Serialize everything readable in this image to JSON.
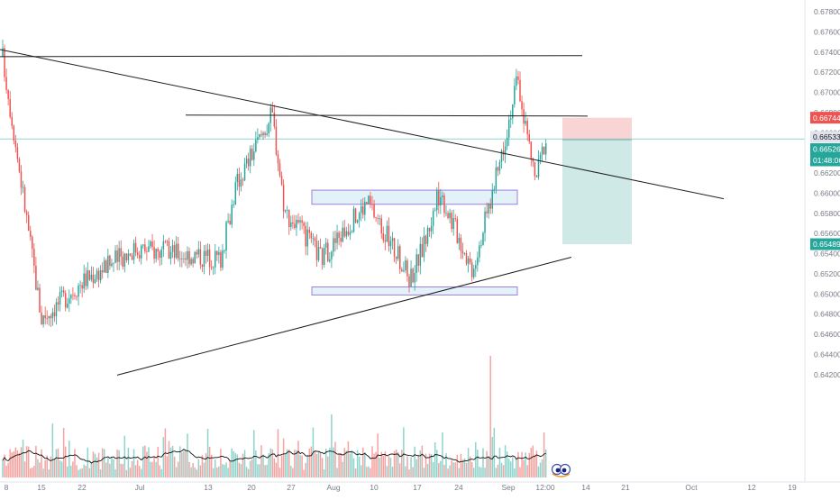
{
  "chart_data": {
    "type": "candlestick",
    "interval": "4H",
    "x_ticks": [
      "8",
      "15",
      "22",
      "Jul",
      "13",
      "20",
      "27",
      "Aug",
      "10",
      "17",
      "24",
      "Sep",
      "12:00",
      "14",
      "21",
      "Oct",
      "12",
      "19"
    ],
    "y_ticks": [
      "0.67800",
      "0.67600",
      "0.67400",
      "0.67200",
      "0.67000",
      "0.66800",
      "0.66600",
      "0.66400",
      "0.66200",
      "0.66000",
      "0.65800",
      "0.65600",
      "0.65400",
      "0.65200",
      "0.65000",
      "0.64800",
      "0.64600",
      "0.64400",
      "0.64200"
    ],
    "ylim": [
      0.6419,
      0.6792
    ],
    "price_labels": {
      "stop_loss": "0.66744",
      "last_price": "0.66533",
      "entry": "0.66526",
      "countdown": "01:48:06",
      "take_profit": "0.65489"
    },
    "key_points": [
      {
        "x": "8",
        "y": 0.6735
      },
      {
        "x": "15",
        "y": 0.6475
      },
      {
        "x": "22",
        "y": 0.6512
      },
      {
        "x": "Jul",
        "y": 0.6545
      },
      {
        "x": "13",
        "y": 0.6535
      },
      {
        "x": "20",
        "y": 0.6608
      },
      {
        "x": "23",
        "y": 0.6678
      },
      {
        "x": "26",
        "y": 0.6582
      },
      {
        "x": "Aug",
        "y": 0.6535
      },
      {
        "x": "8",
        "y": 0.6591
      },
      {
        "x": "14",
        "y": 0.6515
      },
      {
        "x": "17",
        "y": 0.6548
      },
      {
        "x": "20",
        "y": 0.6601
      },
      {
        "x": "24",
        "y": 0.6525
      },
      {
        "x": "28",
        "y": 0.6605
      },
      {
        "x": "Sep",
        "y": 0.6712
      },
      {
        "x": "Sep 3",
        "y": 0.6612
      },
      {
        "x": "Sep 5",
        "y": 0.6653
      }
    ],
    "trendlines": [
      {
        "from": {
          "x": "8",
          "y": 0.6742
        },
        "to": {
          "x": "Sep 12",
          "y": 0.6594
        }
      },
      {
        "from": {
          "x": "8",
          "y": 0.6735
        },
        "to": {
          "x": "Sep 6",
          "y": 0.6736
        }
      },
      {
        "from": {
          "x": "Jul 16",
          "y": 0.6677
        },
        "to": {
          "x": "Sep 6",
          "y": 0.6676
        }
      },
      {
        "from": {
          "x": "Jul 1",
          "y": 0.6419
        },
        "to": {
          "x": "Sep 6",
          "y": 0.6536
        }
      }
    ],
    "zones": [
      {
        "from": {
          "x": "Jul 30",
          "y": 0.66025
        },
        "to": {
          "x": "Aug 29",
          "y": 0.65885
        }
      },
      {
        "from": {
          "x": "Jul 30",
          "y": 0.65065
        },
        "to": {
          "x": "Aug 29",
          "y": 0.64985
        }
      }
    ],
    "position": {
      "side": "short",
      "entry": 0.66526,
      "stop": 0.66744,
      "target": 0.65489
    },
    "grid": false
  },
  "colors": {
    "up": "#26a69a",
    "down": "#ef5350",
    "stop_label": "#ef5350",
    "profit_label": "#26a69a",
    "entry_label": "#26a69a",
    "countdown_label": "#26a69a",
    "last_price_label": "#e0e3eb",
    "zone_stroke": "#9c7fdc",
    "zone_fill": "#d9eef6",
    "stop_zone": "#f9d4d5",
    "profit_zone": "#cfe9e6",
    "price_line": "#8fd3cc",
    "axis_text": "#787b86",
    "trendline": "#1f1f1f",
    "ma_line": "#111111"
  },
  "toolbar_icons": [
    "eyes-icon"
  ]
}
